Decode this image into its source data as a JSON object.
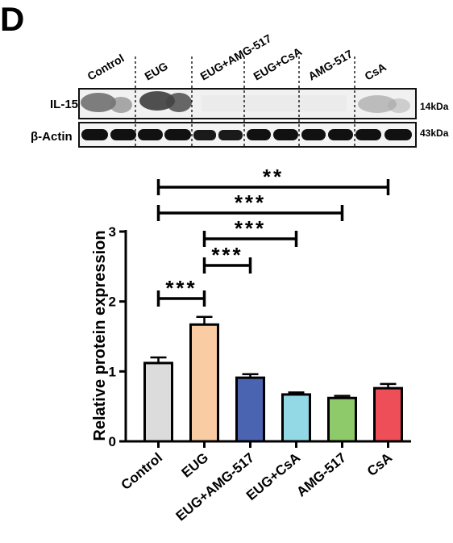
{
  "panel_label": "D",
  "blot": {
    "lane_labels": [
      "Control",
      "EUG",
      "EUG+AMG-517",
      "EUG+CsA",
      "AMG-517",
      "CsA"
    ],
    "rows": [
      {
        "name": "IL-15",
        "size": "14kDa"
      },
      {
        "name": "β-Actin",
        "size": "43kDa"
      }
    ]
  },
  "chart_data": {
    "type": "bar",
    "categories": [
      "Control",
      "EUG",
      "EUG+AMG-517",
      "EUG+CsA",
      "AMG-517",
      "CsA"
    ],
    "values": [
      1.12,
      1.67,
      0.91,
      0.67,
      0.62,
      0.76
    ],
    "errors": [
      0.08,
      0.11,
      0.05,
      0.03,
      0.03,
      0.06
    ],
    "colors": [
      "#dcdcdc",
      "#f9cca3",
      "#4a64b2",
      "#93d9e5",
      "#8ec96a",
      "#ee4e57"
    ],
    "title": "",
    "xlabel": "",
    "ylabel": "Relative protein expression",
    "ylim": [
      0,
      3
    ],
    "yticks": [
      0,
      1,
      2,
      3
    ],
    "grid": false,
    "significance": [
      {
        "from": 0,
        "to": 5,
        "label": "**"
      },
      {
        "from": 0,
        "to": 4,
        "label": "***"
      },
      {
        "from": 1,
        "to": 3,
        "label": "***"
      },
      {
        "from": 1,
        "to": 2,
        "label": "***"
      },
      {
        "from": 0,
        "to": 1,
        "label": "***"
      }
    ]
  }
}
